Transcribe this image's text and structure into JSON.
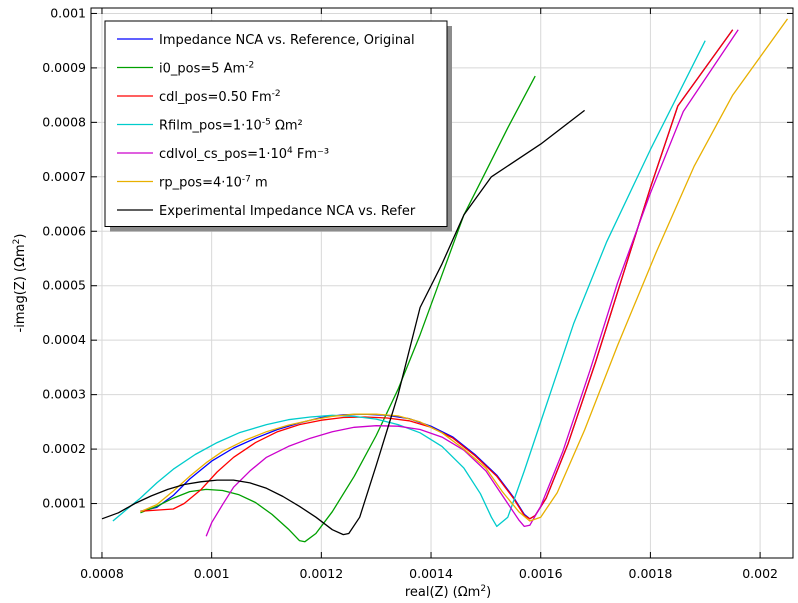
{
  "chart_data": {
    "type": "line",
    "title": "",
    "xlabel_main": "real(Z) (",
    "xlabel_unit": "Ωm",
    "xlabel_sup": "2",
    "xlabel_close": ")",
    "ylabel_main": "-imag(Z) (",
    "ylabel_unit": "Ωm",
    "ylabel_sup": "2",
    "ylabel_close": ")",
    "xlim": [
      0.00078,
      0.00206
    ],
    "ylim": [
      0.0,
      0.00101
    ],
    "grid": true,
    "legend_position": "top-left",
    "xticks": [
      {
        "v": 0.0008,
        "label": "0.0008"
      },
      {
        "v": 0.001,
        "label": "0.001"
      },
      {
        "v": 0.0012,
        "label": "0.0012"
      },
      {
        "v": 0.0014,
        "label": "0.0014"
      },
      {
        "v": 0.0016,
        "label": "0.0016"
      },
      {
        "v": 0.0018,
        "label": "0.0018"
      },
      {
        "v": 0.002,
        "label": "0.002"
      }
    ],
    "yticks": [
      {
        "v": 0.0001,
        "label": "0.0001"
      },
      {
        "v": 0.0002,
        "label": "0.0002"
      },
      {
        "v": 0.0003,
        "label": "0.0003"
      },
      {
        "v": 0.0004,
        "label": "0.0004"
      },
      {
        "v": 0.0005,
        "label": "0.0005"
      },
      {
        "v": 0.0006,
        "label": "0.0006"
      },
      {
        "v": 0.0007,
        "label": "0.0007"
      },
      {
        "v": 0.0008,
        "label": "0.0008"
      },
      {
        "v": 0.0009,
        "label": "0.0009"
      },
      {
        "v": 0.001,
        "label": "0.001"
      }
    ],
    "series": [
      {
        "color": "#0000ff",
        "legend": {
          "base": "Impedance NCA vs. Reference, Original",
          "sup": "",
          "tail": ""
        },
        "points": [
          [
            0.00087,
            8.6e-05
          ],
          [
            0.0009,
            9.3e-05
          ],
          [
            0.00093,
            0.000115
          ],
          [
            0.00096,
            0.000145
          ],
          [
            0.001,
            0.000178
          ],
          [
            0.00104,
            0.000202
          ],
          [
            0.00108,
            0.00022
          ],
          [
            0.00112,
            0.000236
          ],
          [
            0.00116,
            0.000248
          ],
          [
            0.0012,
            0.000258
          ],
          [
            0.00124,
            0.000263
          ],
          [
            0.00128,
            0.000264
          ],
          [
            0.00132,
            0.000262
          ],
          [
            0.00136,
            0.000256
          ],
          [
            0.0014,
            0.000242
          ],
          [
            0.00144,
            0.000222
          ],
          [
            0.00148,
            0.00019
          ],
          [
            0.00152,
            0.000152
          ],
          [
            0.00155,
            0.000112
          ],
          [
            0.00157,
            8e-05
          ],
          [
            0.00158,
            7.2e-05
          ],
          [
            0.00159,
            7.8e-05
          ],
          [
            0.00161,
            0.00011
          ],
          [
            0.00165,
            0.00021
          ],
          [
            0.0017,
            0.00036
          ],
          [
            0.00175,
            0.00052
          ],
          [
            0.0018,
            0.00068
          ],
          [
            0.00185,
            0.00083
          ],
          [
            0.00195,
            0.00097
          ]
        ]
      },
      {
        "color": "#00a000",
        "legend": {
          "base": "i0_pos=5 Am",
          "sup": "-2",
          "tail": ""
        },
        "points": [
          [
            0.00087,
            8.3e-05
          ],
          [
            0.0009,
            9.5e-05
          ],
          [
            0.00093,
            0.00011
          ],
          [
            0.00096,
            0.000122
          ],
          [
            0.00099,
            0.000126
          ],
          [
            0.00102,
            0.000124
          ],
          [
            0.00105,
            0.000116
          ],
          [
            0.00108,
            0.000102
          ],
          [
            0.00111,
            8e-05
          ],
          [
            0.00114,
            5.3e-05
          ],
          [
            0.00116,
            3.2e-05
          ],
          [
            0.00117,
            3e-05
          ],
          [
            0.00119,
            4.5e-05
          ],
          [
            0.00122,
            8.5e-05
          ],
          [
            0.00126,
            0.00015
          ],
          [
            0.0013,
            0.000225
          ],
          [
            0.00134,
            0.00031
          ],
          [
            0.00138,
            0.00041
          ],
          [
            0.00142,
            0.00052
          ],
          [
            0.00146,
            0.00063
          ],
          [
            0.0015,
            0.00071
          ],
          [
            0.00154,
            0.00079
          ],
          [
            0.00159,
            0.000885
          ]
        ]
      },
      {
        "color": "#ff0000",
        "legend": {
          "base": "cdl_pos=0.50 Fm",
          "sup": "-2",
          "tail": ""
        },
        "points": [
          [
            0.00087,
            8.6e-05
          ],
          [
            0.0009,
            8.8e-05
          ],
          [
            0.00093,
            9e-05
          ],
          [
            0.00095,
            0.0001
          ],
          [
            0.00098,
            0.000125
          ],
          [
            0.00101,
            0.000158
          ],
          [
            0.00104,
            0.000185
          ],
          [
            0.00108,
            0.000212
          ],
          [
            0.00112,
            0.000232
          ],
          [
            0.00116,
            0.000245
          ],
          [
            0.0012,
            0.000253
          ],
          [
            0.00124,
            0.000258
          ],
          [
            0.00128,
            0.000259
          ],
          [
            0.00132,
            0.000257
          ],
          [
            0.00136,
            0.000252
          ],
          [
            0.0014,
            0.00024
          ],
          [
            0.00144,
            0.00022
          ],
          [
            0.00148,
            0.000188
          ],
          [
            0.00152,
            0.00015
          ],
          [
            0.00155,
            0.00011
          ],
          [
            0.00157,
            7.8e-05
          ],
          [
            0.00158,
            7.2e-05
          ],
          [
            0.00159,
            7.8e-05
          ],
          [
            0.00161,
            0.00011
          ],
          [
            0.00165,
            0.00021
          ],
          [
            0.0017,
            0.00036
          ],
          [
            0.00175,
            0.00052
          ],
          [
            0.0018,
            0.00068
          ],
          [
            0.00185,
            0.00083
          ],
          [
            0.00195,
            0.00097
          ]
        ]
      },
      {
        "color": "#00cccc",
        "legend": {
          "base": "Rfilm_pos=1·10",
          "sup": "-5",
          "tail": " Ωm²"
        },
        "points": [
          [
            0.00082,
            6.8e-05
          ],
          [
            0.00084,
            8.5e-05
          ],
          [
            0.00087,
            0.00011
          ],
          [
            0.0009,
            0.000138
          ],
          [
            0.00093,
            0.000163
          ],
          [
            0.00097,
            0.00019
          ],
          [
            0.00101,
            0.000212
          ],
          [
            0.00105,
            0.00023
          ],
          [
            0.0011,
            0.000245
          ],
          [
            0.00114,
            0.000254
          ],
          [
            0.00118,
            0.000259
          ],
          [
            0.00122,
            0.000262
          ],
          [
            0.00126,
            0.00026
          ],
          [
            0.0013,
            0.000255
          ],
          [
            0.00134,
            0.000245
          ],
          [
            0.00138,
            0.00023
          ],
          [
            0.00142,
            0.000205
          ],
          [
            0.00146,
            0.000165
          ],
          [
            0.00149,
            0.000118
          ],
          [
            0.00151,
            7.5e-05
          ],
          [
            0.00152,
            5.8e-05
          ],
          [
            0.00154,
            7.5e-05
          ],
          [
            0.00157,
            0.00016
          ],
          [
            0.00161,
            0.00028
          ],
          [
            0.00166,
            0.00043
          ],
          [
            0.00172,
            0.00058
          ],
          [
            0.0018,
            0.00075
          ],
          [
            0.0019,
            0.00095
          ]
        ]
      },
      {
        "color": "#cc00cc",
        "legend": {
          "base": "cdlvol_cs_pos=1·10",
          "sup": "4",
          "tail": " Fm⁻³"
        },
        "points": [
          [
            0.00099,
            4e-05
          ],
          [
            0.001,
            6.5e-05
          ],
          [
            0.00102,
            9.8e-05
          ],
          [
            0.00104,
            0.00013
          ],
          [
            0.00107,
            0.00016
          ],
          [
            0.0011,
            0.000185
          ],
          [
            0.00114,
            0.000205
          ],
          [
            0.00118,
            0.00022
          ],
          [
            0.00122,
            0.000232
          ],
          [
            0.00126,
            0.00024
          ],
          [
            0.0013,
            0.000243
          ],
          [
            0.00134,
            0.000242
          ],
          [
            0.00138,
            0.000236
          ],
          [
            0.00142,
            0.000222
          ],
          [
            0.00146,
            0.000198
          ],
          [
            0.0015,
            0.00016
          ],
          [
            0.00153,
            0.000115
          ],
          [
            0.00156,
            7e-05
          ],
          [
            0.00157,
            5.8e-05
          ],
          [
            0.00158,
            6e-05
          ],
          [
            0.0016,
            9.5e-05
          ],
          [
            0.00164,
            0.000195
          ],
          [
            0.00169,
            0.000345
          ],
          [
            0.00174,
            0.000505
          ],
          [
            0.0018,
            0.00067
          ],
          [
            0.00186,
            0.00082
          ],
          [
            0.00196,
            0.00097
          ]
        ]
      },
      {
        "color": "#e8b000",
        "legend": {
          "base": "rp_pos=4·10",
          "sup": "-7",
          "tail": " m"
        },
        "points": [
          [
            0.00087,
            8.5e-05
          ],
          [
            0.0009,
            9.8e-05
          ],
          [
            0.00093,
            0.000123
          ],
          [
            0.00096,
            0.00015
          ],
          [
            0.00099,
            0.000175
          ],
          [
            0.00102,
            0.000196
          ],
          [
            0.00106,
            0.000216
          ],
          [
            0.0011,
            0.000232
          ],
          [
            0.00114,
            0.000244
          ],
          [
            0.00118,
            0.000253
          ],
          [
            0.00122,
            0.00026
          ],
          [
            0.00126,
            0.000264
          ],
          [
            0.0013,
            0.000264
          ],
          [
            0.00134,
            0.000261
          ],
          [
            0.00138,
            0.00025
          ],
          [
            0.00142,
            0.00023
          ],
          [
            0.00146,
            0.0002
          ],
          [
            0.0015,
            0.000165
          ],
          [
            0.00153,
            0.000122
          ],
          [
            0.00156,
            8.5e-05
          ],
          [
            0.00158,
            6.8e-05
          ],
          [
            0.0016,
            7.5e-05
          ],
          [
            0.00163,
            0.00012
          ],
          [
            0.00168,
            0.000235
          ],
          [
            0.00174,
            0.00039
          ],
          [
            0.00181,
            0.00056
          ],
          [
            0.00188,
            0.00072
          ],
          [
            0.00195,
            0.00085
          ],
          [
            0.00205,
            0.00099
          ]
        ]
      },
      {
        "color": "#000000",
        "legend": {
          "base": "Experimental Impedance NCA vs. Refer",
          "sup": "",
          "tail": ""
        },
        "points": [
          [
            0.0008,
            7.2e-05
          ],
          [
            0.00083,
            8.3e-05
          ],
          [
            0.00086,
            0.0001
          ],
          [
            0.00089,
            0.000114
          ],
          [
            0.00092,
            0.000126
          ],
          [
            0.00095,
            0.000135
          ],
          [
            0.00098,
            0.00014
          ],
          [
            0.00101,
            0.000143
          ],
          [
            0.00104,
            0.000143
          ],
          [
            0.00107,
            0.000138
          ],
          [
            0.0011,
            0.000128
          ],
          [
            0.00113,
            0.000113
          ],
          [
            0.00116,
            9.5e-05
          ],
          [
            0.00119,
            7.5e-05
          ],
          [
            0.00122,
            5.2e-05
          ],
          [
            0.00124,
            4.3e-05
          ],
          [
            0.00125,
            4.5e-05
          ],
          [
            0.00127,
            7.5e-05
          ],
          [
            0.0013,
            0.00017
          ],
          [
            0.00134,
            0.0003
          ],
          [
            0.00138,
            0.00046
          ],
          [
            0.00142,
            0.00054
          ],
          [
            0.00146,
            0.00063
          ],
          [
            0.00151,
            0.0007
          ],
          [
            0.0016,
            0.00076
          ],
          [
            0.00168,
            0.000822
          ]
        ]
      }
    ]
  }
}
